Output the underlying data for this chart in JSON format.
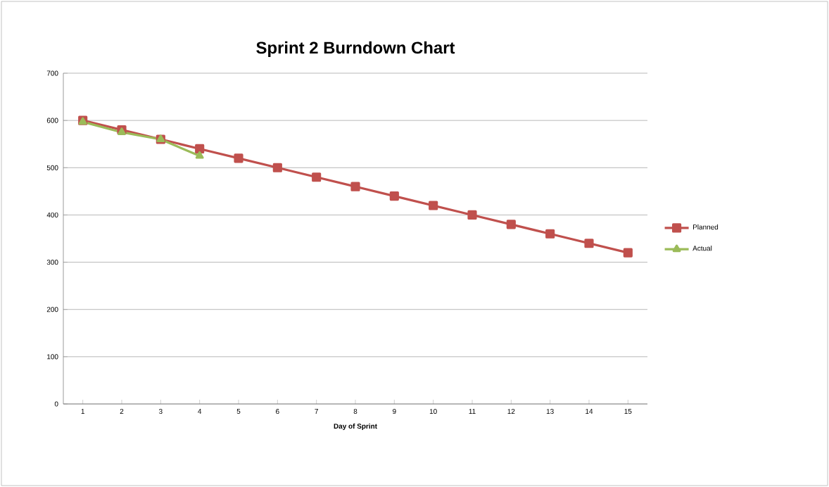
{
  "chart_data": {
    "type": "line",
    "title": "Sprint 2 Burndown Chart",
    "xlabel": "Day of Sprint",
    "categories": [
      "1",
      "2",
      "3",
      "4",
      "5",
      "6",
      "7",
      "8",
      "9",
      "10",
      "11",
      "12",
      "13",
      "14",
      "15"
    ],
    "series": [
      {
        "name": "Planned",
        "color": "#c0504d",
        "marker": "square",
        "values": [
          600,
          580,
          560,
          540,
          520,
          500,
          480,
          460,
          440,
          420,
          400,
          380,
          360,
          340,
          320
        ]
      },
      {
        "name": "Actual",
        "color": "#9bbb59",
        "marker": "triangle",
        "values": [
          597,
          575,
          560,
          525,
          null,
          null,
          null,
          null,
          null,
          null,
          null,
          null,
          null,
          null,
          null
        ]
      }
    ],
    "ylim": [
      0,
      700
    ],
    "yticks": [
      0,
      100,
      200,
      300,
      400,
      500,
      600,
      700
    ],
    "grid": "y",
    "legend": "right",
    "line_style": "solid"
  }
}
